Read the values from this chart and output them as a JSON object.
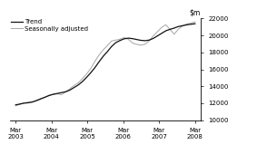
{
  "ylim": [
    10000,
    22000
  ],
  "yticks": [
    10000,
    12000,
    14000,
    16000,
    18000,
    20000,
    22000
  ],
  "xtick_labels": [
    "Mar\n2003",
    "Mar\n2004",
    "Mar\n2005",
    "Mar\n2006",
    "Mar\n2007",
    "Mar\n2008"
  ],
  "trend_color": "#111111",
  "seas_color": "#aaaaaa",
  "legend_labels": [
    "Trend",
    "Seasonally adjusted"
  ],
  "trend": [
    11800,
    11900,
    12000,
    12050,
    12150,
    12300,
    12500,
    12700,
    12900,
    13050,
    13150,
    13250,
    13350,
    13550,
    13850,
    14150,
    14550,
    15050,
    15600,
    16200,
    16900,
    17550,
    18100,
    18700,
    19150,
    19400,
    19600,
    19680,
    19620,
    19520,
    19420,
    19380,
    19450,
    19650,
    19950,
    20250,
    20550,
    20720,
    20870,
    21050,
    21150,
    21250,
    21320,
    21380
  ],
  "seas_adj": [
    11700,
    11850,
    12050,
    12100,
    12100,
    12350,
    12550,
    12700,
    12950,
    13050,
    13100,
    13000,
    13350,
    13700,
    14100,
    14400,
    14900,
    15450,
    16100,
    16950,
    17700,
    18300,
    18800,
    19350,
    19450,
    19550,
    19750,
    19550,
    19100,
    18950,
    18850,
    18950,
    19350,
    19950,
    20450,
    20950,
    21250,
    20700,
    20150,
    20750,
    21100,
    21350,
    21450,
    21600
  ]
}
